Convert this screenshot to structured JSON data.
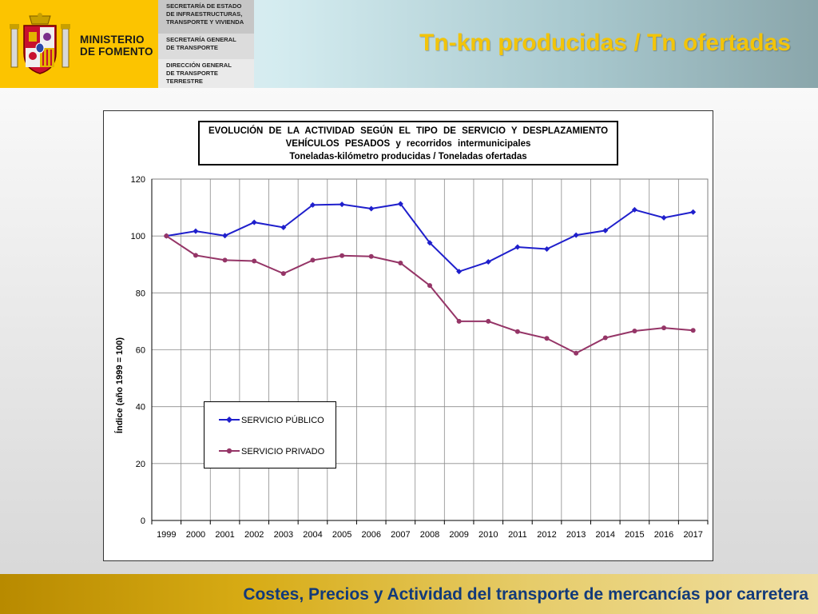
{
  "header": {
    "ministry_line1": "MINISTERIO",
    "ministry_line2": "DE FOMENTO",
    "org1": [
      "SECRETARÍA DE ESTADO",
      "DE INFRAESTRUCTURAS,",
      "TRANSPORTE Y VIVIENDA"
    ],
    "org2": [
      "SECRETARÍA GENERAL",
      "DE TRANSPORTE"
    ],
    "org3": [
      "DIRECCIÓN GENERAL",
      "DE TRANSPORTE",
      "TERRESTRE"
    ],
    "slide_title": "Tn-km producidas / Tn ofertadas",
    "colors": {
      "header_yellow": "#fcc400",
      "title_yellow": "#f2c40a"
    }
  },
  "footer": {
    "text": "Costes, Precios y Actividad del transporte de mercancías por carretera",
    "text_color": "#123a7a"
  },
  "chart_data": {
    "type": "line",
    "title": [
      "EVOLUCIÓN DE LA ACTIVIDAD SEGÚN EL TIPO DE SERVICIO Y DESPLAZAMIENTO",
      "VEHÍCULOS PESADOS y recorridos intermunicipales",
      "Toneladas-kilómetro producidas / Toneladas ofertadas"
    ],
    "ylabel": "Índice (año 1999 = 100)",
    "xlabel": "",
    "categories": [
      "1999",
      "2000",
      "2001",
      "2002",
      "2003",
      "2004",
      "2005",
      "2006",
      "2007",
      "2008",
      "2009",
      "2010",
      "2011",
      "2012",
      "2013",
      "2014",
      "2015",
      "2016",
      "2017"
    ],
    "ylim": [
      0,
      120
    ],
    "yticks": [
      0,
      20,
      40,
      60,
      80,
      100,
      120
    ],
    "grid": true,
    "legend_position": "bottom-left",
    "series": [
      {
        "name": "SERVICIO PÚBLICO",
        "color": "#1f1fcc",
        "marker": "diamond",
        "values": [
          100.0,
          101.7,
          100.1,
          104.8,
          103.0,
          110.9,
          111.1,
          109.6,
          111.3,
          97.6,
          87.5,
          90.9,
          96.1,
          95.4,
          100.3,
          101.9,
          109.2,
          106.4,
          108.4
        ]
      },
      {
        "name": "SERVICIO PRIVADO",
        "color": "#953567",
        "marker": "circle",
        "values": [
          100.0,
          93.2,
          91.5,
          91.2,
          86.8,
          91.5,
          93.1,
          92.8,
          90.5,
          82.6,
          70.0,
          70.0,
          66.4,
          64.0,
          58.8,
          64.2,
          66.6,
          67.7,
          66.8
        ]
      }
    ]
  }
}
